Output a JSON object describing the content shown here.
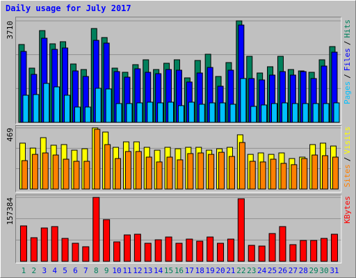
{
  "chart_data": [
    {
      "type": "bar",
      "title": "Daily usage for July 2017",
      "legend_separator": "/",
      "ylim": [
        0,
        3710
      ],
      "yticks": [
        3710
      ],
      "series": [
        {
          "name": "Hits",
          "color": "#00805c",
          "values": [
            2846,
            1982,
            3354,
            2871,
            2948,
            2134,
            1931,
            3430,
            3100,
            1982,
            1830,
            2109,
            2287,
            1931,
            2160,
            2287,
            1626,
            2262,
            2490,
            1677,
            2185,
            3710,
            2414,
            1804,
            2033,
            2414,
            1931,
            1880,
            1830,
            2287,
            2770
          ]
        },
        {
          "name": "Files",
          "color": "#0000ff",
          "values": [
            2592,
            1753,
            3075,
            2668,
            2719,
            1880,
            1677,
            2998,
            2897,
            1855,
            1652,
            1957,
            1830,
            1779,
            1931,
            1906,
            1474,
            1804,
            2007,
            1321,
            1906,
            3557,
            1601,
            1550,
            1728,
            1855,
            1728,
            1855,
            1601,
            2058,
            2566
          ]
        },
        {
          "name": "Pages",
          "color": "#00c0ff",
          "values": [
            991,
            1016,
            1423,
            1296,
            991,
            559,
            559,
            1245,
            1220,
            686,
            686,
            711,
            737,
            711,
            737,
            610,
            737,
            661,
            711,
            711,
            661,
            1601,
            584,
            635,
            686,
            711,
            686,
            686,
            686,
            686,
            711
          ]
        }
      ]
    },
    {
      "type": "bar",
      "legend_separator": "/",
      "ylim": [
        0,
        469
      ],
      "yticks": [
        469
      ],
      "series": [
        {
          "name": "Visits",
          "color": "#ffff00",
          "values": [
            352,
            314,
            394,
            336,
            341,
            298,
            309,
            469,
            437,
            320,
            362,
            362,
            320,
            298,
            320,
            309,
            320,
            320,
            298,
            309,
            320,
            416,
            266,
            277,
            266,
            277,
            234,
            245,
            341,
            352,
            330
          ]
        },
        {
          "name": "Sites",
          "color": "#ff8000",
          "values": [
            218,
            266,
            277,
            261,
            229,
            213,
            213,
            458,
            341,
            234,
            288,
            288,
            245,
            208,
            245,
            224,
            272,
            277,
            266,
            282,
            250,
            357,
            213,
            208,
            229,
            197,
            187,
            234,
            261,
            256,
            245
          ]
        }
      ]
    },
    {
      "type": "bar",
      "ylim": [
        0,
        157384
      ],
      "yticks": [
        157384
      ],
      "categories": [
        "1",
        "2",
        "3",
        "4",
        "5",
        "6",
        "7",
        "8",
        "9",
        "10",
        "11",
        "12",
        "13",
        "14",
        "15",
        "16",
        "17",
        "18",
        "19",
        "20",
        "21",
        "22",
        "23",
        "24",
        "25",
        "26",
        "27",
        "28",
        "29",
        "30",
        "31"
      ],
      "label_colors": [
        "#00805c",
        "#00805c",
        "#0000ff",
        "#0000ff",
        "#0000ff",
        "#0000ff",
        "#0000ff",
        "#00805c",
        "#00805c",
        "#0000ff",
        "#0000ff",
        "#0000ff",
        "#0000ff",
        "#0000ff",
        "#00805c",
        "#00805c",
        "#0000ff",
        "#0000ff",
        "#0000ff",
        "#0000ff",
        "#0000ff",
        "#00805c",
        "#00805c",
        "#0000ff",
        "#0000ff",
        "#0000ff",
        "#0000ff",
        "#0000ff",
        "#00805c",
        "#00805c",
        "#0000ff"
      ],
      "series": [
        {
          "name": "KBytes",
          "color": "#ff0000",
          "values": [
            87261,
            58174,
            82128,
            85550,
            56463,
            44486,
            35931,
            157384,
            102660,
            47908,
            65018,
            66729,
            44486,
            53041,
            59885,
            44486,
            54752,
            49619,
            59885,
            44486,
            54752,
            153990,
            39353,
            37642,
            68440,
            85550,
            41064,
            51330,
            51330,
            56463,
            66729
          ]
        }
      ]
    }
  ]
}
